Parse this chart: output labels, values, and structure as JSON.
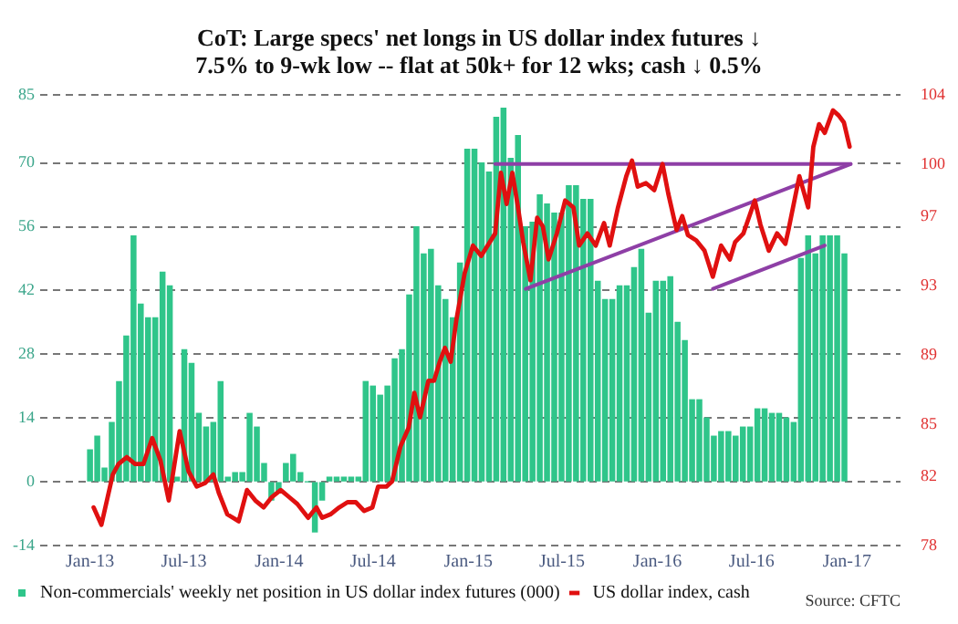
{
  "chart_data": {
    "type": "bar",
    "title": "CoT: Large specs' net longs in US dollar index futures ↓\n7.5% to 9-wk low -- flat at 50k+ for 12 wks; cash ↓ 0.5%",
    "xlim": [
      "2012-12-28",
      "2017-01-12"
    ],
    "xticks": [
      {
        "value": "2013-01-01",
        "label": "Jan-13"
      },
      {
        "value": "2013-07-01",
        "label": "Jul-13"
      },
      {
        "value": "2014-01-01",
        "label": "Jan-14"
      },
      {
        "value": "2014-07-01",
        "label": "Jul-14"
      },
      {
        "value": "2015-01-01",
        "label": "Jan-15"
      },
      {
        "value": "2015-07-01",
        "label": "Jul-15"
      },
      {
        "value": "2016-01-01",
        "label": "Jan-16"
      },
      {
        "value": "2016-07-01",
        "label": "Jul-16"
      },
      {
        "value": "2017-01-01",
        "label": "Jan-17"
      }
    ],
    "ylim": [
      -14,
      85
    ],
    "yticks": [
      -14,
      0,
      14,
      28,
      42,
      56,
      70,
      85
    ],
    "y2lim": [
      78,
      104
    ],
    "y2ticks": [
      78,
      82,
      85,
      89,
      93,
      97,
      100,
      104
    ],
    "grid": "y",
    "legend": "bottom left",
    "annotations": [
      "Source: CFTC"
    ],
    "series": [
      {
        "name": "Non-commercials' weekly net position in US dollar index futures (000)",
        "color": "#2fc58a",
        "x": [
          "2013-01-01",
          "2013-01-15",
          "2013-01-29",
          "2013-02-12",
          "2013-02-26",
          "2013-03-12",
          "2013-03-26",
          "2013-04-09",
          "2013-04-23",
          "2013-05-07",
          "2013-05-21",
          "2013-06-04",
          "2013-06-18",
          "2013-07-02",
          "2013-07-16",
          "2013-07-30",
          "2013-08-13",
          "2013-08-27",
          "2013-09-10",
          "2013-09-24",
          "2013-10-08",
          "2013-10-22",
          "2013-11-05",
          "2013-11-19",
          "2013-12-03",
          "2013-12-17",
          "2013-12-31",
          "2014-01-14",
          "2014-01-28",
          "2014-02-11",
          "2014-02-25",
          "2014-03-11",
          "2014-03-25",
          "2014-04-08",
          "2014-04-22",
          "2014-05-06",
          "2014-05-20",
          "2014-06-03",
          "2014-06-17",
          "2014-07-01",
          "2014-07-15",
          "2014-07-29",
          "2014-08-12",
          "2014-08-26",
          "2014-09-09",
          "2014-09-23",
          "2014-10-07",
          "2014-10-21",
          "2014-11-04",
          "2014-11-18",
          "2014-12-02",
          "2014-12-16",
          "2014-12-30",
          "2015-01-13",
          "2015-01-27",
          "2015-02-10",
          "2015-02-24",
          "2015-03-10",
          "2015-03-24",
          "2015-04-07",
          "2015-04-21",
          "2015-05-05",
          "2015-05-19",
          "2015-06-02",
          "2015-06-16",
          "2015-06-30",
          "2015-07-14",
          "2015-07-28",
          "2015-08-11",
          "2015-08-25",
          "2015-09-08",
          "2015-09-22",
          "2015-10-06",
          "2015-10-20",
          "2015-11-03",
          "2015-11-17",
          "2015-12-01",
          "2015-12-15",
          "2015-12-29",
          "2016-01-12",
          "2016-01-26",
          "2016-02-09",
          "2016-02-23",
          "2016-03-08",
          "2016-03-22",
          "2016-04-05",
          "2016-04-19",
          "2016-05-03",
          "2016-05-17",
          "2016-05-31",
          "2016-06-14",
          "2016-06-28",
          "2016-07-12",
          "2016-07-26",
          "2016-08-09",
          "2016-08-23",
          "2016-09-06",
          "2016-09-20",
          "2016-10-04",
          "2016-10-18",
          "2016-11-01",
          "2016-11-15",
          "2016-11-29",
          "2016-12-13",
          "2016-12-27"
        ],
        "values": [
          7,
          10,
          3,
          13,
          22,
          32,
          54,
          39,
          36,
          36,
          46,
          43,
          1,
          29,
          26,
          15,
          12,
          13,
          22,
          1,
          2,
          2,
          15,
          12,
          4,
          -4,
          -2,
          4,
          6,
          2,
          0,
          -11,
          -4,
          1,
          1,
          1,
          1,
          1,
          22,
          21,
          19,
          21,
          27,
          29,
          41,
          56,
          50,
          51,
          43,
          40,
          36,
          48,
          73,
          73,
          70,
          68,
          80,
          82,
          71,
          76,
          56,
          57,
          63,
          61,
          59,
          59,
          65,
          65,
          62,
          62,
          44,
          40,
          40,
          43,
          43,
          47,
          51,
          37,
          44,
          44,
          45,
          35,
          31,
          18,
          18,
          14,
          10,
          11,
          11,
          10,
          12,
          12,
          16,
          16,
          15,
          15,
          14,
          13,
          49,
          54,
          50,
          54,
          54,
          54,
          50
        ]
      },
      {
        "name": "US dollar index, cash",
        "color": "#e01010",
        "type": "line",
        "axis": "y2",
        "x": [
          "2013-01-08",
          "2013-01-23",
          "2013-02-14",
          "2013-02-25",
          "2013-03-13",
          "2013-03-29",
          "2013-04-14",
          "2013-05-01",
          "2013-05-17",
          "2013-06-02",
          "2013-06-23",
          "2013-07-10",
          "2013-07-26",
          "2013-08-11",
          "2013-08-27",
          "2013-09-07",
          "2013-09-23",
          "2013-10-15",
          "2013-10-31",
          "2013-11-16",
          "2013-12-02",
          "2013-12-18",
          "2014-01-04",
          "2014-01-20",
          "2014-02-05",
          "2014-02-26",
          "2014-03-14",
          "2014-03-25",
          "2014-04-10",
          "2014-04-27",
          "2014-05-13",
          "2014-05-29",
          "2014-06-14",
          "2014-06-30",
          "2014-07-11",
          "2014-07-27",
          "2014-08-07",
          "2014-08-23",
          "2014-09-08",
          "2014-09-19",
          "2014-09-30",
          "2014-10-16",
          "2014-10-27",
          "2014-11-07",
          "2014-11-17",
          "2014-11-28",
          "2014-12-09",
          "2014-12-25",
          "2015-01-10",
          "2015-01-26",
          "2015-02-22",
          "2015-03-05",
          "2015-03-16",
          "2015-03-27",
          "2015-04-06",
          "2015-04-17",
          "2015-05-01",
          "2015-05-14",
          "2015-05-25",
          "2015-06-05",
          "2015-06-21",
          "2015-07-07",
          "2015-07-23",
          "2015-08-03",
          "2015-08-19",
          "2015-09-04",
          "2015-09-20",
          "2015-10-01",
          "2015-10-17",
          "2015-11-02",
          "2015-11-13",
          "2015-11-24",
          "2015-12-10",
          "2015-12-26",
          "2016-01-11",
          "2016-01-22",
          "2016-02-07",
          "2016-02-18",
          "2016-02-29",
          "2016-03-16",
          "2016-04-01",
          "2016-04-17",
          "2016-05-03",
          "2016-05-20",
          "2016-05-30",
          "2016-06-15",
          "2016-07-07",
          "2016-07-18",
          "2016-08-03",
          "2016-08-19",
          "2016-09-04",
          "2016-09-10",
          "2016-10-01",
          "2016-10-18",
          "2016-10-28",
          "2016-11-08",
          "2016-11-19",
          "2016-12-05",
          "2016-12-16",
          "2016-12-26",
          "2017-01-06"
        ],
        "values": [
          80.2,
          79.2,
          82.1,
          82.7,
          83.1,
          82.7,
          82.7,
          84.2,
          82.9,
          80.6,
          84.6,
          82.3,
          81.4,
          81.6,
          82.1,
          81.0,
          79.8,
          79.4,
          81.2,
          80.6,
          80.2,
          80.8,
          81.2,
          80.8,
          80.4,
          79.6,
          80.2,
          79.6,
          79.8,
          80.2,
          80.5,
          80.5,
          80.0,
          80.2,
          81.4,
          81.4,
          81.7,
          83.7,
          84.8,
          86.8,
          85.4,
          87.5,
          87.5,
          88.6,
          89.4,
          88.6,
          91.0,
          93.7,
          95.3,
          94.7,
          96.0,
          99.5,
          97.7,
          99.5,
          97.7,
          95.5,
          93.3,
          96.9,
          96.4,
          94.5,
          96.0,
          97.9,
          97.5,
          95.3,
          96.0,
          95.3,
          96.6,
          95.3,
          97.5,
          99.3,
          100.2,
          98.7,
          98.9,
          98.5,
          100.0,
          98.3,
          96.2,
          97.0,
          95.9,
          95.6,
          95.0,
          93.5,
          95.3,
          94.5,
          95.5,
          96.0,
          97.9,
          96.5,
          95.0,
          96.0,
          95.4,
          96.2,
          99.3,
          97.5,
          101.0,
          102.3,
          101.8,
          103.1,
          102.8,
          102.4,
          101.0
        ]
      },
      {
        "color": "#8e3fa6",
        "type": "line",
        "axis": "y2",
        "x": [
          "2015-02-22",
          "2017-01-08"
        ],
        "values": [
          100,
          100
        ]
      },
      {
        "color": "#8e3fa6",
        "type": "line",
        "axis": "y2",
        "x": [
          "2015-04-22",
          "2017-01-08"
        ],
        "values": [
          92.8,
          100
        ]
      },
      {
        "color": "#8e3fa6",
        "type": "line",
        "axis": "y2",
        "x": [
          "2016-04-17",
          "2016-11-19"
        ],
        "values": [
          92.8,
          95.3
        ]
      }
    ]
  }
}
